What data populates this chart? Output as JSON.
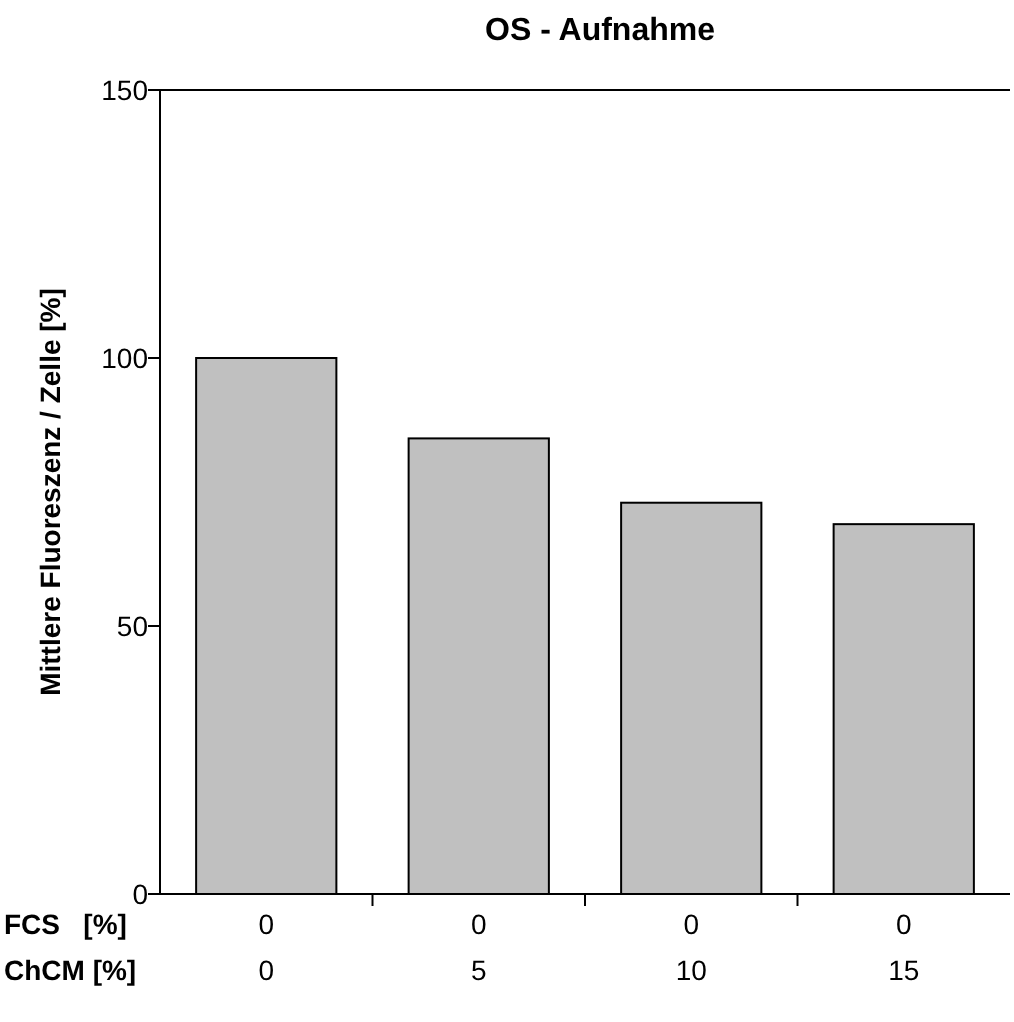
{
  "chart_data": {
    "type": "bar",
    "title": "OS - Aufnahme",
    "ylabel": "Mittlere Fluoreszenz / Zelle [%]",
    "xlabel": "FCS   [%]\nChCM [%]",
    "categories": [
      "0\n0",
      "0\n5",
      "0\n10",
      "0\n15"
    ],
    "values": [
      100,
      85,
      73,
      69
    ],
    "color": "#c0c0c0",
    "ylim": [
      0,
      150
    ],
    "yticks": [
      0,
      50,
      100,
      150
    ],
    "grid": false
  }
}
